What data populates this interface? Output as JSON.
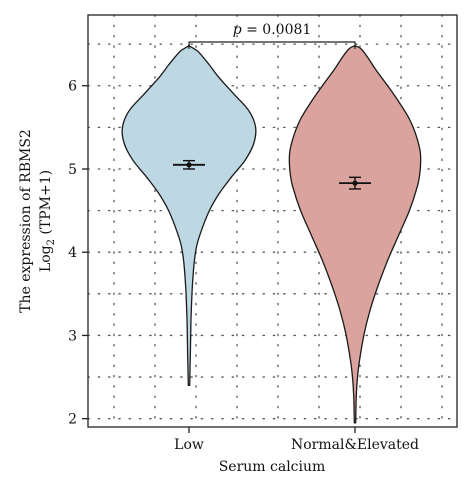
{
  "chart_data": {
    "type": "violin",
    "xlabel": "Serum calcium",
    "ylabel_line1": "The expression of RBMS2",
    "ylabel_line2_main": "Log",
    "ylabel_line2_sub": "2",
    "ylabel_line2_rest": " (TPM+1)",
    "yticks": [
      2,
      3,
      4,
      5,
      6
    ],
    "ylim": [
      1.9,
      6.85
    ],
    "grid": "dotted",
    "categories": [
      "Low",
      "Normal&Elevated"
    ],
    "groups": [
      {
        "label": "Low",
        "color": "#bdd7e3",
        "min": 2.4,
        "max": 6.48,
        "mean": 5.05,
        "ci_low": 5.0,
        "ci_high": 5.1,
        "profile": [
          [
            2.4,
            0.01
          ],
          [
            2.8,
            0.02
          ],
          [
            3.2,
            0.03
          ],
          [
            3.6,
            0.05
          ],
          [
            3.9,
            0.08
          ],
          [
            4.1,
            0.12
          ],
          [
            4.3,
            0.2
          ],
          [
            4.5,
            0.3
          ],
          [
            4.7,
            0.44
          ],
          [
            4.9,
            0.62
          ],
          [
            5.1,
            0.82
          ],
          [
            5.3,
            0.95
          ],
          [
            5.5,
            0.98
          ],
          [
            5.7,
            0.88
          ],
          [
            5.9,
            0.66
          ],
          [
            6.1,
            0.44
          ],
          [
            6.25,
            0.3
          ],
          [
            6.35,
            0.2
          ],
          [
            6.42,
            0.12
          ],
          [
            6.48,
            0.0
          ]
        ]
      },
      {
        "label": "Normal&Elevated",
        "color": "#dba39d",
        "min": 1.95,
        "max": 6.48,
        "mean": 4.83,
        "ci_low": 4.76,
        "ci_high": 4.9,
        "profile": [
          [
            1.95,
            0.01
          ],
          [
            2.3,
            0.02
          ],
          [
            2.6,
            0.05
          ],
          [
            3.0,
            0.13
          ],
          [
            3.3,
            0.22
          ],
          [
            3.6,
            0.34
          ],
          [
            3.9,
            0.48
          ],
          [
            4.2,
            0.64
          ],
          [
            4.5,
            0.8
          ],
          [
            4.8,
            0.92
          ],
          [
            5.0,
            0.96
          ],
          [
            5.2,
            0.96
          ],
          [
            5.4,
            0.9
          ],
          [
            5.6,
            0.8
          ],
          [
            5.8,
            0.65
          ],
          [
            6.0,
            0.48
          ],
          [
            6.2,
            0.3
          ],
          [
            6.35,
            0.18
          ],
          [
            6.45,
            0.08
          ],
          [
            6.48,
            0.0
          ]
        ]
      }
    ],
    "annotation": {
      "text": "p = 0.0081",
      "italic_part": "p",
      "rest": " = 0.0081",
      "between": [
        "Low",
        "Normal&Elevated"
      ]
    }
  }
}
